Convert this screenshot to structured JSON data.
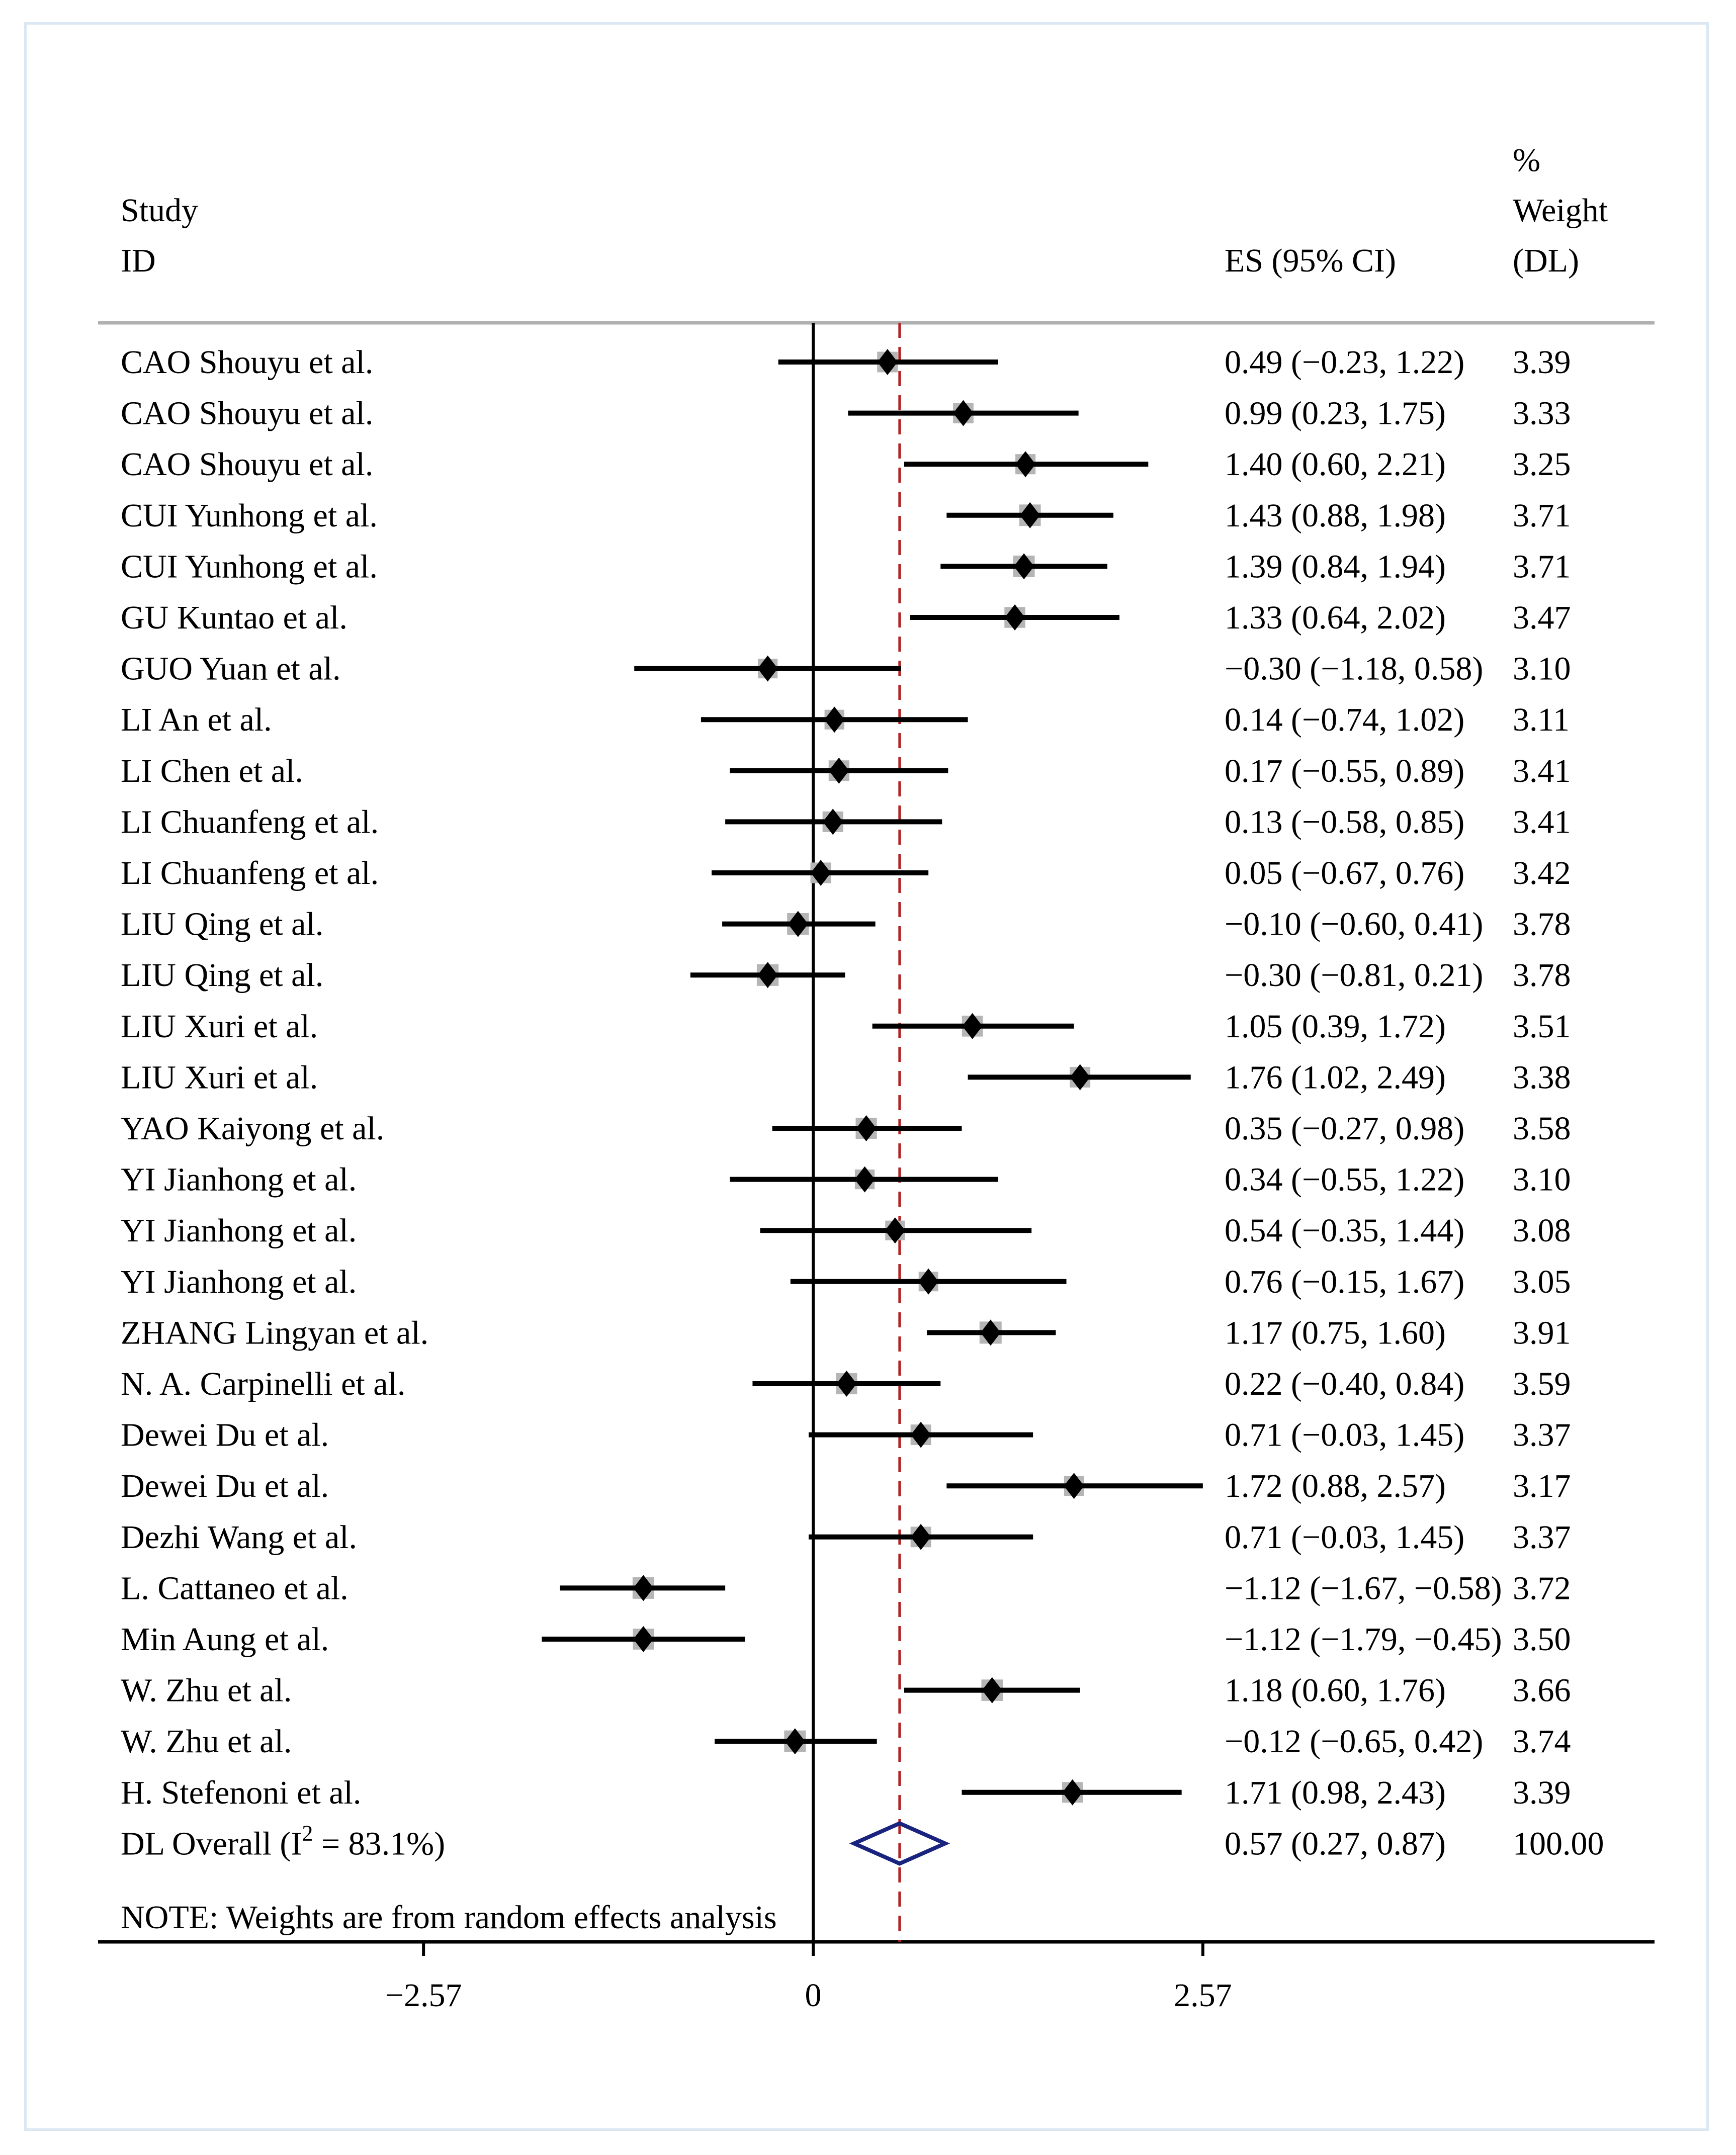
{
  "colors": {
    "ci_line": "#000000",
    "weight_box": "#b5b5b5",
    "point": "#000000",
    "overall_ref_line": "#b22222",
    "diamond": "#1a237e",
    "rule": "#b0b0b0",
    "frame": "#dbe8f3"
  },
  "chart_data": {
    "type": "forest",
    "header": {
      "study_line1": "Study",
      "study_line2": "ID",
      "es": "ES (95% CI)",
      "weight_line1": "%",
      "weight_line2": "Weight",
      "weight_line3": "(DL)"
    },
    "x_ticks": [
      {
        "value": -2.57,
        "label": "−2.57"
      },
      {
        "value": 0,
        "label": "0"
      },
      {
        "value": 2.57,
        "label": "2.57"
      }
    ],
    "null_line": 0,
    "studies": [
      {
        "name": "CAO Shouyu et al.",
        "es": 0.49,
        "lo": -0.23,
        "hi": 1.22,
        "es_text": "0.49 (−0.23, 1.22)",
        "weight": 3.39,
        "weight_text": "3.39"
      },
      {
        "name": "CAO Shouyu et al.",
        "es": 0.99,
        "lo": 0.23,
        "hi": 1.75,
        "es_text": "0.99 (0.23, 1.75)",
        "weight": 3.33,
        "weight_text": "3.33"
      },
      {
        "name": "CAO Shouyu et al.",
        "es": 1.4,
        "lo": 0.6,
        "hi": 2.21,
        "es_text": "1.40 (0.60, 2.21)",
        "weight": 3.25,
        "weight_text": "3.25"
      },
      {
        "name": "CUI Yunhong et al.",
        "es": 1.43,
        "lo": 0.88,
        "hi": 1.98,
        "es_text": "1.43 (0.88, 1.98)",
        "weight": 3.71,
        "weight_text": "3.71"
      },
      {
        "name": "CUI Yunhong et al.",
        "es": 1.39,
        "lo": 0.84,
        "hi": 1.94,
        "es_text": "1.39 (0.84, 1.94)",
        "weight": 3.71,
        "weight_text": "3.71"
      },
      {
        "name": "GU Kuntao et al.",
        "es": 1.33,
        "lo": 0.64,
        "hi": 2.02,
        "es_text": "1.33 (0.64, 2.02)",
        "weight": 3.47,
        "weight_text": "3.47"
      },
      {
        "name": "GUO Yuan et al.",
        "es": -0.3,
        "lo": -1.18,
        "hi": 0.58,
        "es_text": "−0.30 (−1.18, 0.58)",
        "weight": 3.1,
        "weight_text": "3.10"
      },
      {
        "name": "LI An et al.",
        "es": 0.14,
        "lo": -0.74,
        "hi": 1.02,
        "es_text": "0.14 (−0.74, 1.02)",
        "weight": 3.11,
        "weight_text": "3.11"
      },
      {
        "name": "LI Chen et al.",
        "es": 0.17,
        "lo": -0.55,
        "hi": 0.89,
        "es_text": "0.17 (−0.55, 0.89)",
        "weight": 3.41,
        "weight_text": "3.41"
      },
      {
        "name": "LI Chuanfeng et al.",
        "es": 0.13,
        "lo": -0.58,
        "hi": 0.85,
        "es_text": "0.13 (−0.58, 0.85)",
        "weight": 3.41,
        "weight_text": "3.41"
      },
      {
        "name": "LI Chuanfeng et al.",
        "es": 0.05,
        "lo": -0.67,
        "hi": 0.76,
        "es_text": "0.05 (−0.67, 0.76)",
        "weight": 3.42,
        "weight_text": "3.42"
      },
      {
        "name": "LIU Qing et al.",
        "es": -0.1,
        "lo": -0.6,
        "hi": 0.41,
        "es_text": "−0.10 (−0.60, 0.41)",
        "weight": 3.78,
        "weight_text": "3.78"
      },
      {
        "name": "LIU Qing et al.",
        "es": -0.3,
        "lo": -0.81,
        "hi": 0.21,
        "es_text": "−0.30 (−0.81, 0.21)",
        "weight": 3.78,
        "weight_text": "3.78"
      },
      {
        "name": "LIU Xuri et al.",
        "es": 1.05,
        "lo": 0.39,
        "hi": 1.72,
        "es_text": "1.05 (0.39, 1.72)",
        "weight": 3.51,
        "weight_text": "3.51"
      },
      {
        "name": "LIU Xuri et al.",
        "es": 1.76,
        "lo": 1.02,
        "hi": 2.49,
        "es_text": "1.76 (1.02, 2.49)",
        "weight": 3.38,
        "weight_text": "3.38"
      },
      {
        "name": "YAO Kaiyong et al.",
        "es": 0.35,
        "lo": -0.27,
        "hi": 0.98,
        "es_text": "0.35 (−0.27, 0.98)",
        "weight": 3.58,
        "weight_text": "3.58"
      },
      {
        "name": "YI Jianhong et al.",
        "es": 0.34,
        "lo": -0.55,
        "hi": 1.22,
        "es_text": "0.34 (−0.55, 1.22)",
        "weight": 3.1,
        "weight_text": "3.10"
      },
      {
        "name": "YI Jianhong et al.",
        "es": 0.54,
        "lo": -0.35,
        "hi": 1.44,
        "es_text": "0.54 (−0.35, 1.44)",
        "weight": 3.08,
        "weight_text": "3.08"
      },
      {
        "name": "YI Jianhong et al.",
        "es": 0.76,
        "lo": -0.15,
        "hi": 1.67,
        "es_text": "0.76 (−0.15, 1.67)",
        "weight": 3.05,
        "weight_text": "3.05"
      },
      {
        "name": "ZHANG Lingyan et al.",
        "es": 1.17,
        "lo": 0.75,
        "hi": 1.6,
        "es_text": "1.17 (0.75, 1.60)",
        "weight": 3.91,
        "weight_text": "3.91"
      },
      {
        "name": "N. A. Carpinelli et al.",
        "es": 0.22,
        "lo": -0.4,
        "hi": 0.84,
        "es_text": "0.22 (−0.40, 0.84)",
        "weight": 3.59,
        "weight_text": "3.59"
      },
      {
        "name": "Dewei Du et al.",
        "es": 0.71,
        "lo": -0.03,
        "hi": 1.45,
        "es_text": "0.71 (−0.03, 1.45)",
        "weight": 3.37,
        "weight_text": "3.37"
      },
      {
        "name": "Dewei Du et al.",
        "es": 1.72,
        "lo": 0.88,
        "hi": 2.57,
        "es_text": "1.72 (0.88, 2.57)",
        "weight": 3.17,
        "weight_text": "3.17"
      },
      {
        "name": "Dezhi Wang et al.",
        "es": 0.71,
        "lo": -0.03,
        "hi": 1.45,
        "es_text": "0.71 (−0.03, 1.45)",
        "weight": 3.37,
        "weight_text": "3.37"
      },
      {
        "name": "L. Cattaneo et al.",
        "es": -1.12,
        "lo": -1.67,
        "hi": -0.58,
        "es_text": "−1.12 (−1.67, −0.58)",
        "weight": 3.72,
        "weight_text": "3.72"
      },
      {
        "name": "Min Aung et al.",
        "es": -1.12,
        "lo": -1.79,
        "hi": -0.45,
        "es_text": "−1.12 (−1.79, −0.45)",
        "weight": 3.5,
        "weight_text": "3.50"
      },
      {
        "name": "W. Zhu et al.",
        "es": 1.18,
        "lo": 0.6,
        "hi": 1.76,
        "es_text": "1.18 (0.60, 1.76)",
        "weight": 3.66,
        "weight_text": "3.66"
      },
      {
        "name": "W. Zhu et al.",
        "es": -0.12,
        "lo": -0.65,
        "hi": 0.42,
        "es_text": "−0.12 (−0.65, 0.42)",
        "weight": 3.74,
        "weight_text": "3.74"
      },
      {
        "name": "H. Stefenoni et al.",
        "es": 1.71,
        "lo": 0.98,
        "hi": 2.43,
        "es_text": "1.71 (0.98, 2.43)",
        "weight": 3.39,
        "weight_text": "3.39"
      }
    ],
    "overall": {
      "label_prefix": "DL Overall  (I",
      "label_sup": "2",
      "label_suffix": " = 83.1%)",
      "es": 0.57,
      "lo": 0.27,
      "hi": 0.87,
      "es_text": "0.57 (0.27, 0.87)",
      "weight_text": "100.00"
    },
    "note": "NOTE: Weights are from random effects analysis"
  }
}
